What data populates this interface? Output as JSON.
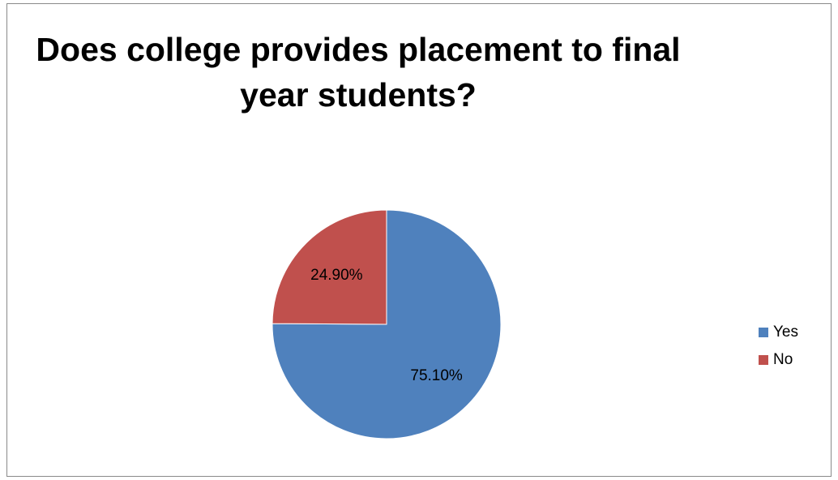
{
  "chart_data": {
    "type": "pie",
    "title_lines": [
      "Does college provides placement to final",
      "year students?"
    ],
    "slices": [
      {
        "label": "Yes",
        "value": 75.1,
        "display": "75.10%",
        "color": "#4F81BD"
      },
      {
        "label": "No",
        "value": 24.9,
        "display": "24.90%",
        "color": "#C0504D"
      }
    ],
    "legend_position": "right"
  }
}
